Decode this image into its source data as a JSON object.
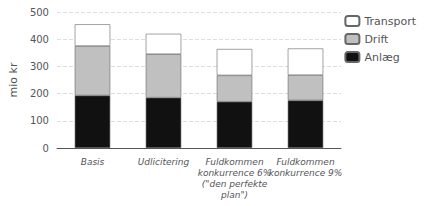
{
  "chart_data": {
    "type": "bar",
    "stacked": true,
    "categories": [
      "Basis",
      "Udlicitering",
      "Fuldkommen\nkonkurrence 6%\n(\"den perfekte\nplan\")",
      "Fuldkommen\nkonkurrence 9%"
    ],
    "series": [
      {
        "name": "Anlæg",
        "color": "#111111",
        "values": [
          193,
          185,
          170,
          175
        ]
      },
      {
        "name": "Drift",
        "color": "#c0c0c0",
        "values": [
          182,
          160,
          97,
          93
        ]
      },
      {
        "name": "Transport",
        "color": "#ffffff",
        "values": [
          80,
          75,
          97,
          98
        ]
      }
    ],
    "ylabel": "mio kr",
    "ylim": [
      0,
      500
    ],
    "yticks": [
      0,
      100,
      200,
      300,
      400,
      500
    ],
    "grid": true,
    "legend": "upper right"
  }
}
